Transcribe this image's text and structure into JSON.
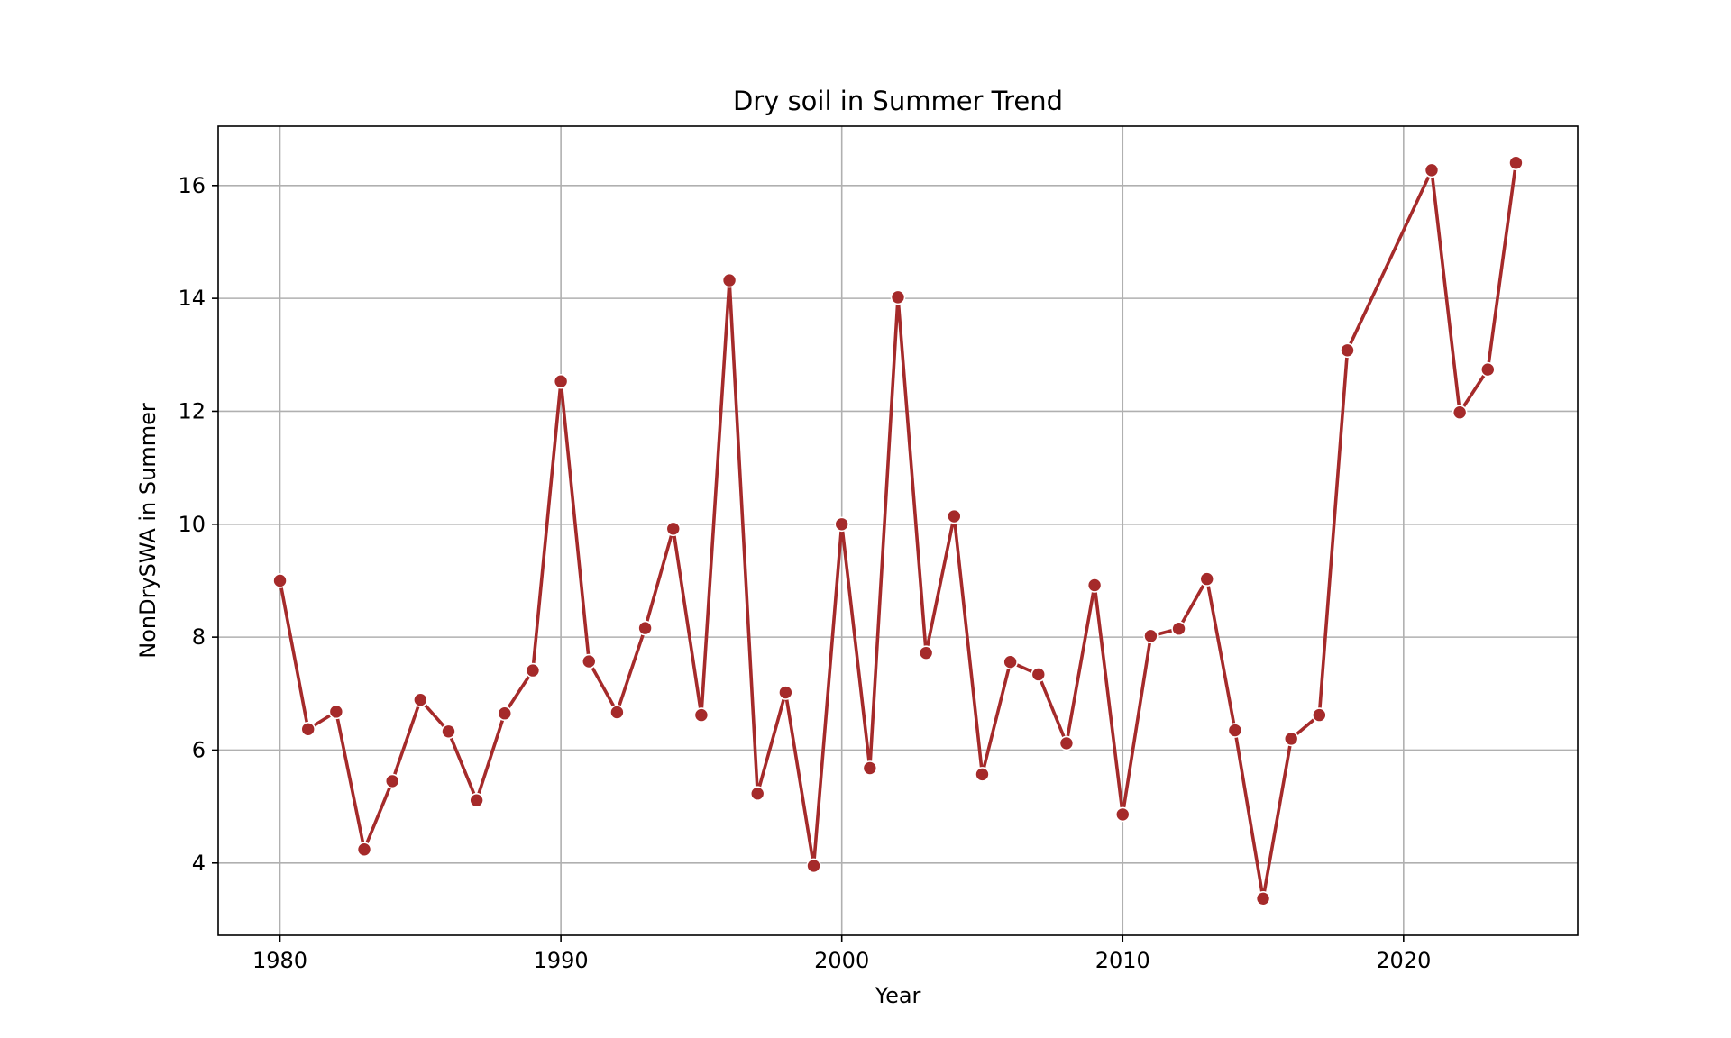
{
  "chart_data": {
    "type": "line",
    "title": "Dry soil in Summer Trend",
    "xlabel": "Year",
    "ylabel": "NonDrySWA in Summer",
    "xlim": [
      1977.8,
      2026.2
    ],
    "ylim": [
      2.72,
      17.05
    ],
    "grid": true,
    "x_ticks": [
      1980,
      1990,
      2000,
      2010,
      2020
    ],
    "y_ticks": [
      4,
      6,
      8,
      10,
      12,
      14,
      16
    ],
    "series": [
      {
        "name": "NonDrySWA in Summer",
        "color": "#a52a2a",
        "x": [
          1980,
          1981,
          1982,
          1983,
          1984,
          1985,
          1986,
          1987,
          1988,
          1989,
          1990,
          1991,
          1992,
          1993,
          1994,
          1995,
          1996,
          1997,
          1998,
          1999,
          2000,
          2001,
          2002,
          2003,
          2004,
          2005,
          2006,
          2007,
          2008,
          2009,
          2010,
          2011,
          2012,
          2013,
          2014,
          2015,
          2016,
          2017,
          2018,
          2021,
          2022,
          2023,
          2024
        ],
        "values": [
          9.0,
          6.37,
          6.68,
          4.24,
          5.45,
          6.89,
          6.33,
          5.11,
          6.65,
          7.41,
          12.53,
          7.57,
          6.67,
          8.16,
          9.92,
          6.62,
          14.32,
          5.23,
          7.02,
          3.95,
          10.0,
          5.68,
          14.02,
          7.72,
          10.14,
          5.57,
          7.56,
          7.34,
          6.12,
          8.92,
          4.86,
          8.02,
          8.15,
          9.03,
          6.35,
          3.37,
          6.2,
          6.62,
          13.08,
          16.27,
          11.98,
          12.74,
          16.4
        ]
      }
    ]
  }
}
